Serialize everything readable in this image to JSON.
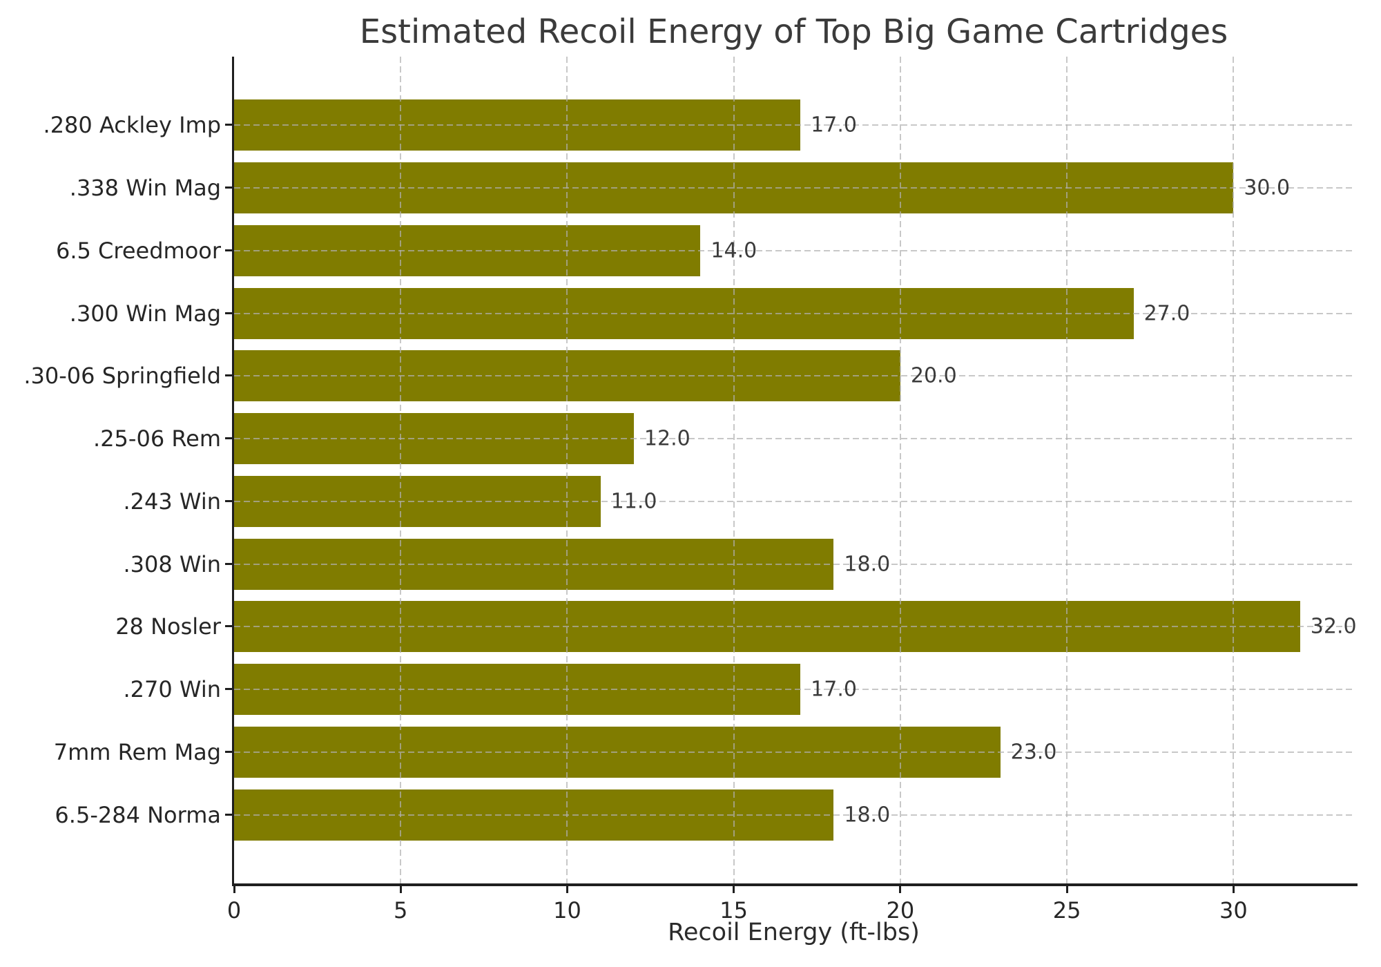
{
  "chart_data": {
    "type": "bar",
    "orientation": "horizontal",
    "title": "Estimated Recoil Energy of Top Big Game Cartridges",
    "xlabel": "Recoil Energy (ft-lbs)",
    "ylabel": "",
    "categories": [
      ".280 Ackley Imp",
      ".338 Win Mag",
      "6.5 Creedmoor",
      ".300 Win Mag",
      ".30-06 Springfield",
      ".25-06 Rem",
      ".243 Win",
      ".308 Win",
      "28 Nosler",
      ".270 Win",
      "7mm Rem Mag",
      "6.5-284 Norma"
    ],
    "values": [
      17.0,
      30.0,
      14.0,
      27.0,
      20.0,
      12.0,
      11.0,
      18.0,
      32.0,
      17.0,
      23.0,
      18.0
    ],
    "value_labels": [
      "17.0",
      "30.0",
      "14.0",
      "27.0",
      "20.0",
      "12.0",
      "11.0",
      "18.0",
      "32.0",
      "17.0",
      "23.0",
      "18.0"
    ],
    "x_ticks": [
      0,
      5,
      10,
      15,
      20,
      25,
      30
    ],
    "xlim": [
      0,
      33.6
    ],
    "grid": "dashed",
    "grid_on": true,
    "legend": "none",
    "bar_color": "#807c00",
    "grid_color": "#b0b0b0",
    "axis_color": "#1f1f1f",
    "text_color": "#262626",
    "background": "#ffffff"
  }
}
